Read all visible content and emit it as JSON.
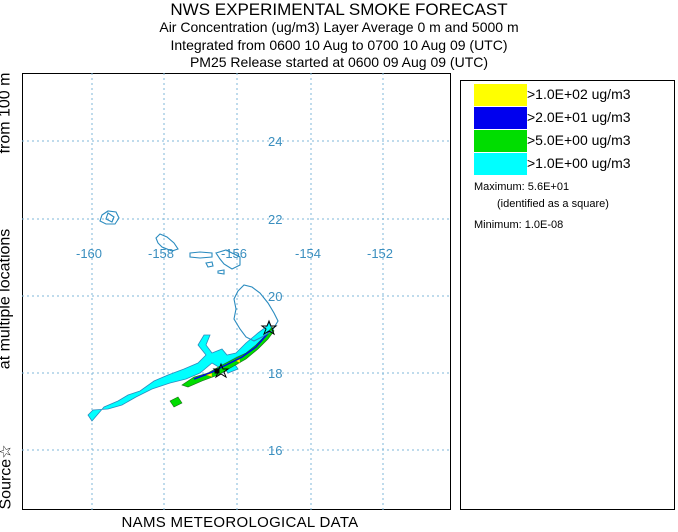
{
  "header": {
    "title": "NWS EXPERIMENTAL SMOKE FORECAST",
    "line2": "Air Concentration (ug/m3) Layer Average    0 m and  5000 m",
    "line3": "Integrated from 0600 10 Aug to 0700 10 Aug 09 (UTC)",
    "line4": "PM25 Release started at 0600 09 Aug 09 (UTC)"
  },
  "footer": "NAMS METEOROLOGICAL DATA",
  "side_label": {
    "part1": "Source☆",
    "part2": "at multiple locations",
    "part3": "from   100 m"
  },
  "map": {
    "lat_labels": [
      "24",
      "22",
      "20",
      "18",
      "16"
    ],
    "lon_labels": [
      "-160",
      "-158",
      "-156",
      "-154",
      "-152"
    ],
    "colors": {
      "grid": "#7fb7d9",
      "coast": "#2a8bbf",
      "yellow": "#ffff00",
      "blue": "#0000ff",
      "green": "#00dd00",
      "cyan": "#00ffff"
    }
  },
  "legend": {
    "items": [
      {
        "label": ">1.0E+02 ug/m3",
        "color": "#ffff00"
      },
      {
        "label": ">2.0E+01 ug/m3",
        "color": "#0000ee"
      },
      {
        "label": ">5.0E+00 ug/m3",
        "color": "#00dd00"
      },
      {
        "label": ">1.0E+00 ug/m3",
        "color": "#00ffff"
      }
    ],
    "maximum": "Maximum: 5.6E+01",
    "identified": "(identified as a square)",
    "minimum": "Minimum: 1.0E-08"
  }
}
